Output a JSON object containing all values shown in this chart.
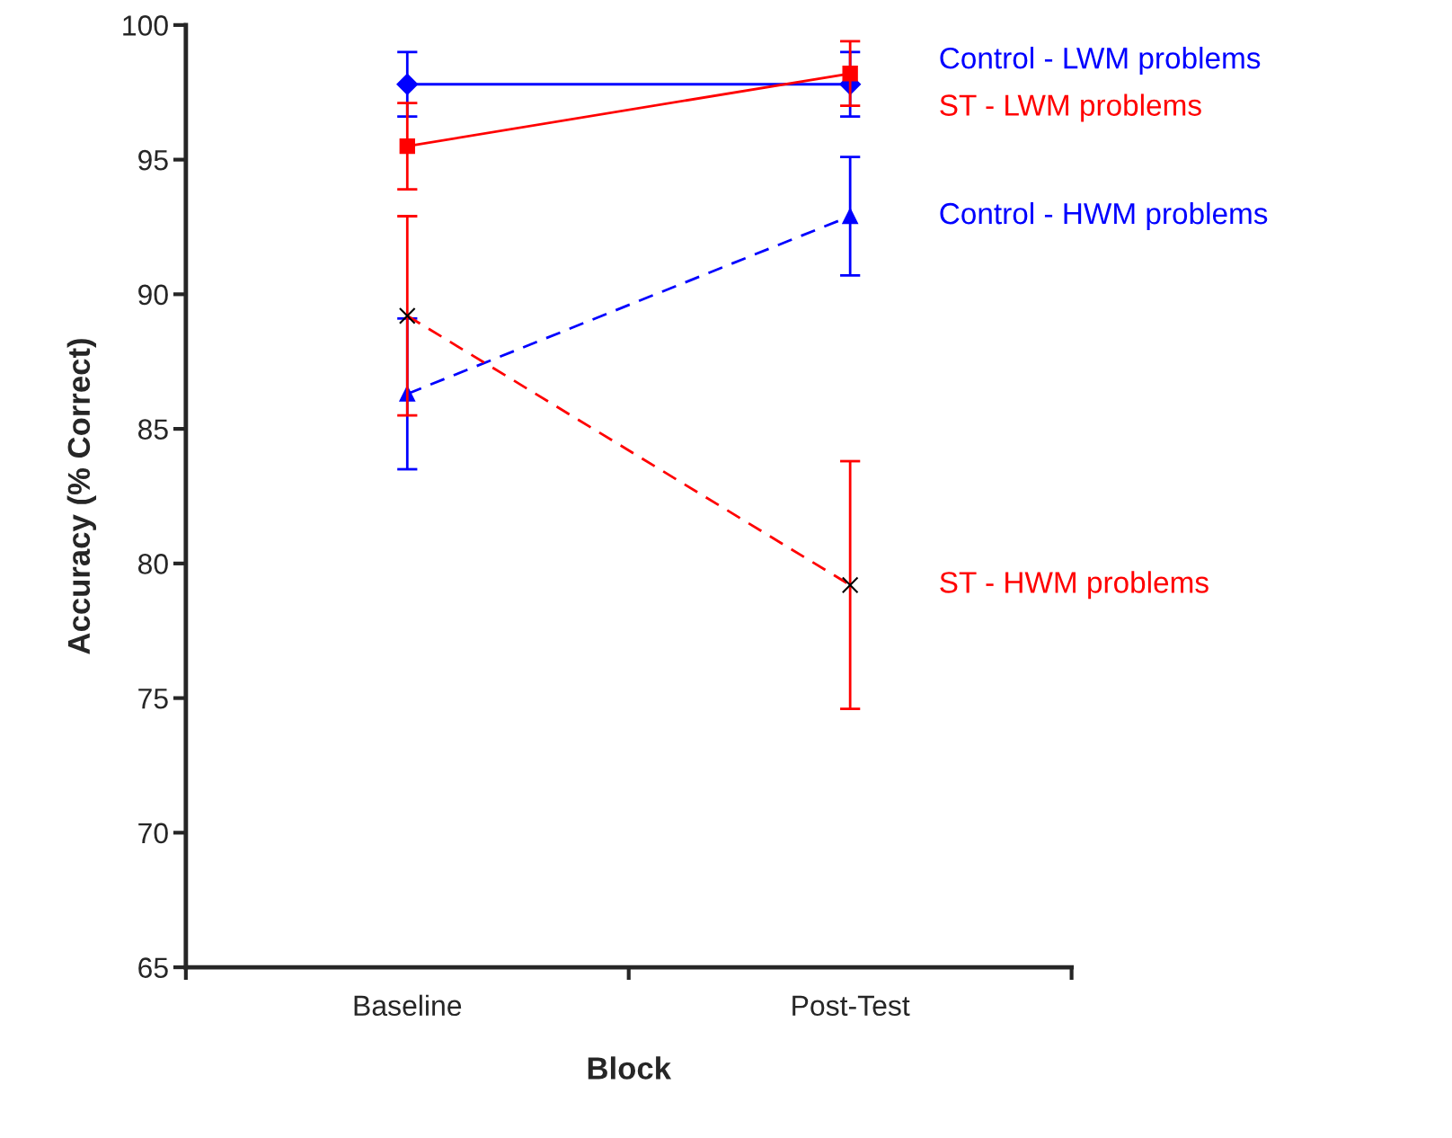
{
  "chart_data": {
    "type": "line",
    "xlabel": "Block",
    "ylabel": "Accuracy (% Correct)",
    "categories": [
      "Baseline",
      "Post-Test"
    ],
    "ylim": [
      65,
      100
    ],
    "yticks": [
      65,
      70,
      75,
      80,
      85,
      90,
      95,
      100
    ],
    "grid": false,
    "legend": false,
    "series": [
      {
        "name": "Control - LWM problems",
        "color": "#0000ff",
        "values": [
          97.8,
          97.8
        ],
        "errors": [
          1.2,
          1.2
        ],
        "marker": "diamond",
        "line_style": "solid"
      },
      {
        "name": "ST - LWM problems",
        "color": "#ff0000",
        "values": [
          95.5,
          98.2
        ],
        "errors": [
          1.6,
          1.2
        ],
        "marker": "square",
        "line_style": "solid"
      },
      {
        "name": "Control - HWM problems",
        "color": "#0000ff",
        "values": [
          86.3,
          92.9
        ],
        "errors": [
          2.8,
          2.2
        ],
        "marker": "triangle",
        "line_style": "dashed"
      },
      {
        "name": "ST - HWM problems",
        "color": "#ff0000",
        "values": [
          89.2,
          79.2
        ],
        "errors": [
          3.7,
          4.6
        ],
        "marker": "cross",
        "line_style": "dashed"
      }
    ]
  }
}
